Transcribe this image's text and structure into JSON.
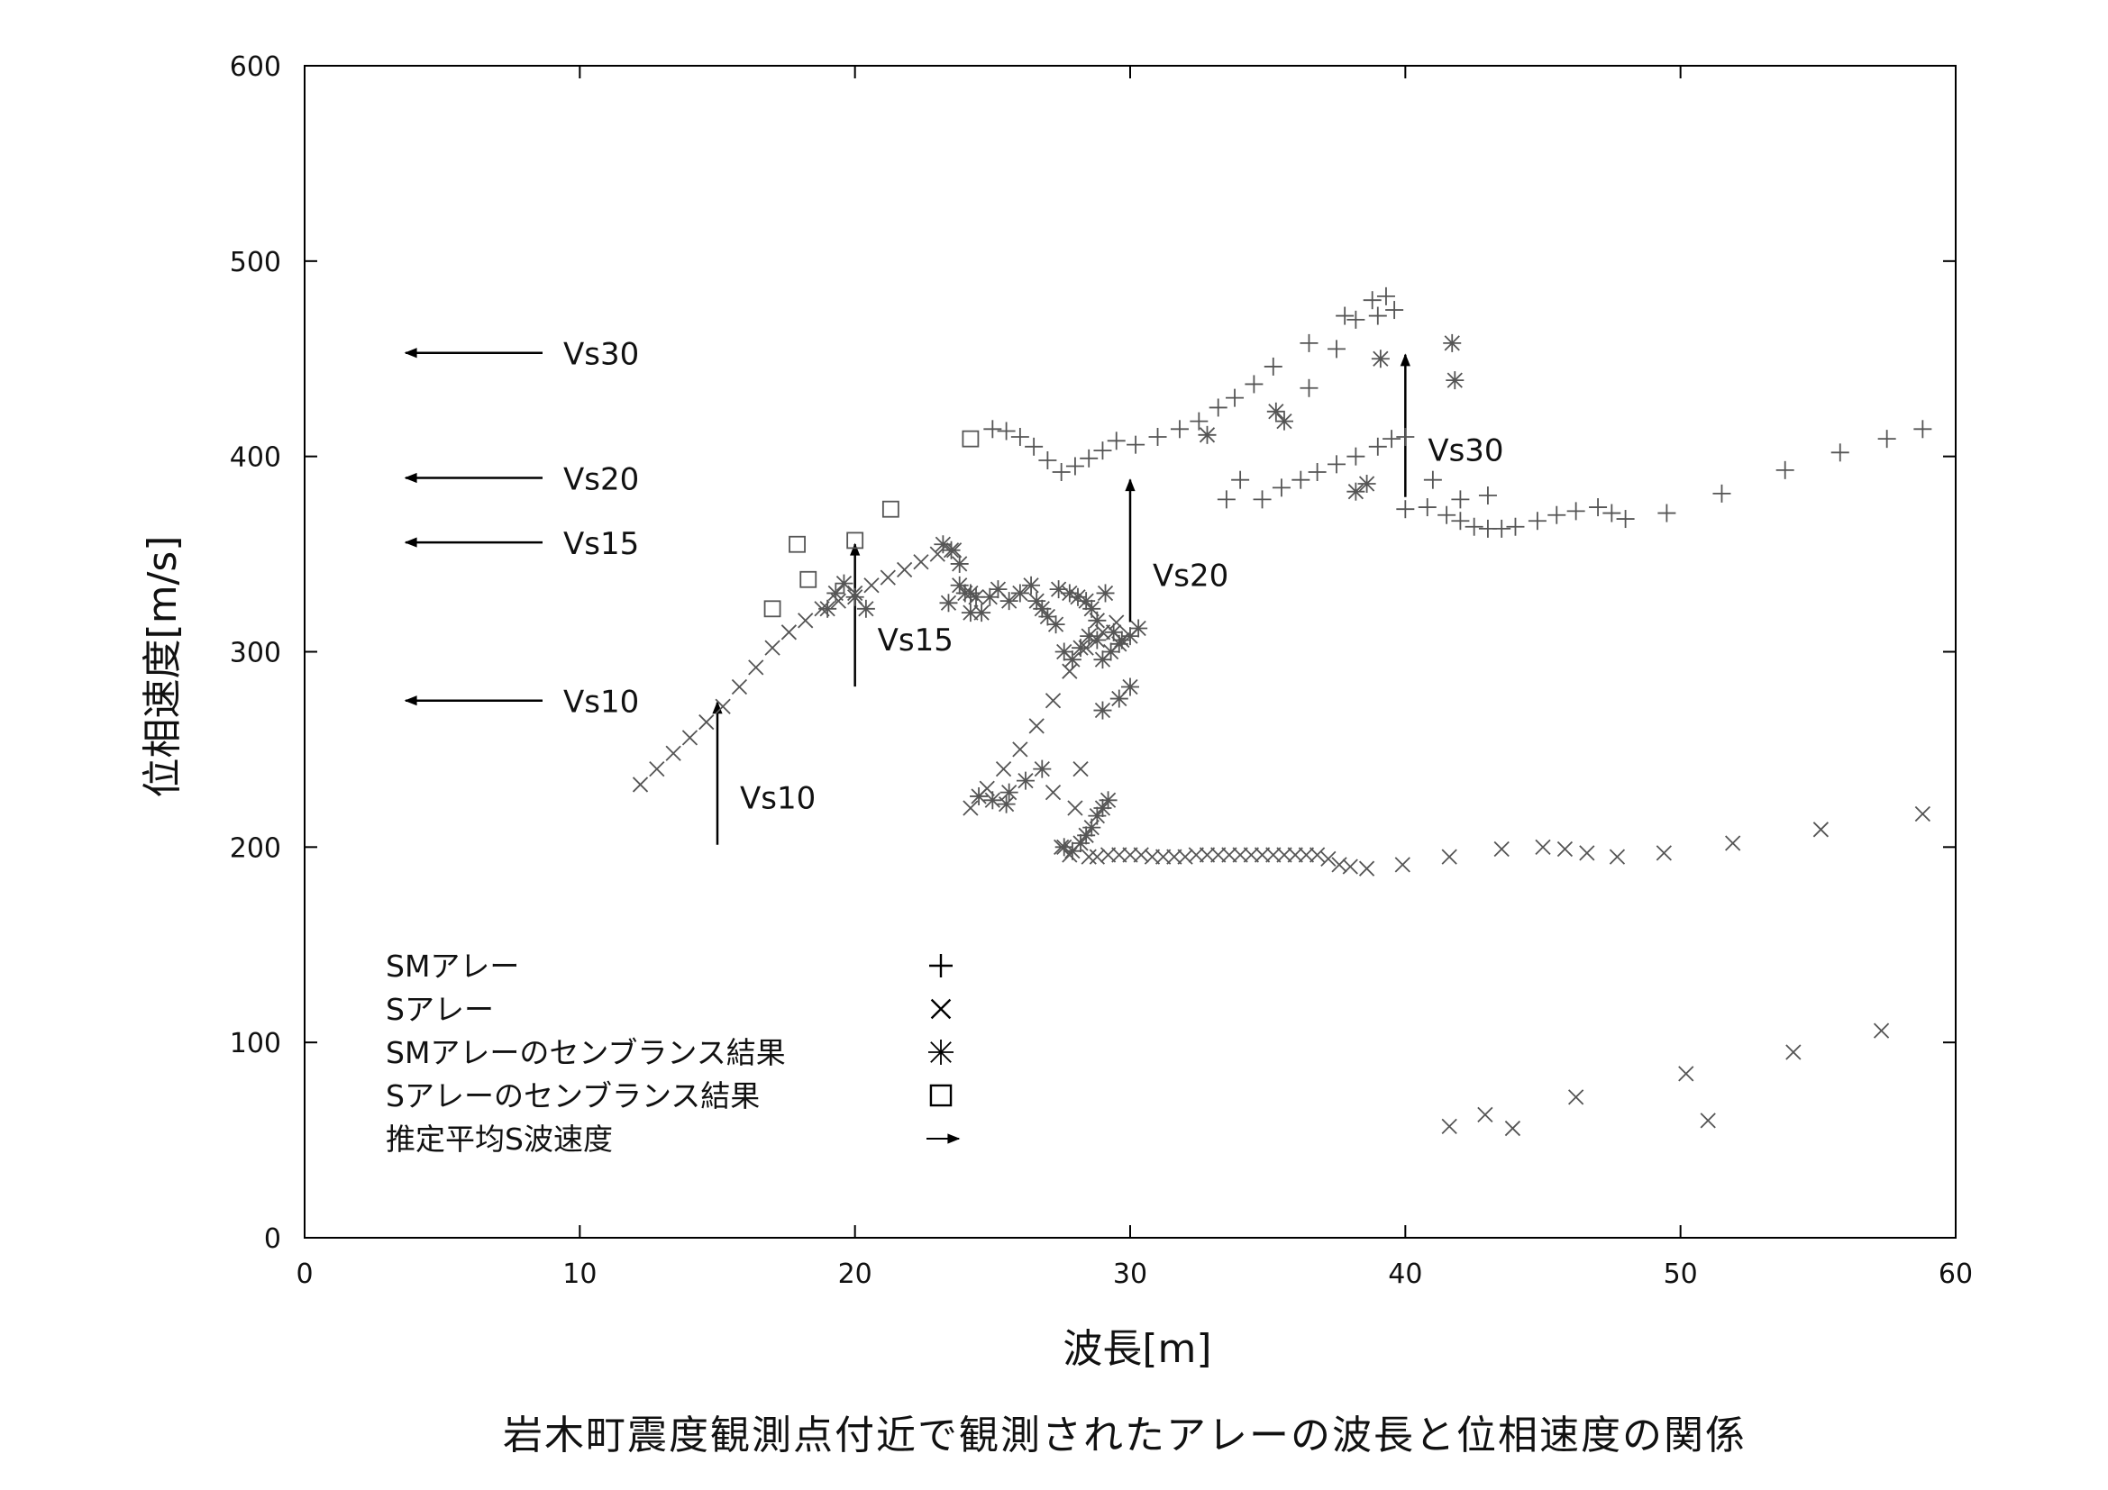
{
  "chart_data": {
    "type": "scatter",
    "caption": "岩木町震度観測点付近で観測されたアレーの波長と位相速度の関係",
    "xlabel": "波長[m]",
    "ylabel": "位相速度[m/s]",
    "xlim": [
      0,
      60
    ],
    "ylim": [
      0,
      600
    ],
    "xticks": [
      "0",
      "10",
      "20",
      "30",
      "40",
      "50",
      "60"
    ],
    "yticks": [
      "0",
      "100",
      "200",
      "300",
      "400",
      "500",
      "600"
    ],
    "grid": false,
    "legend_position": "bottom-left",
    "colors": {
      "points": "#555555",
      "arrows": "#000000"
    },
    "legend": [
      {
        "label": "SMアレー",
        "symbol": "+"
      },
      {
        "label": "Sアレー",
        "symbol": "×"
      },
      {
        "label": "SMアレーのセンブランス結果",
        "symbol": "※"
      },
      {
        "label": "Sアレーのセンブランス結果",
        "symbol": "□"
      },
      {
        "label": "推定平均S波速度",
        "symbol": "→"
      }
    ],
    "reference_lines": [
      {
        "label": "Vs30",
        "velocity": 453
      },
      {
        "label": "Vs20",
        "velocity": 389
      },
      {
        "label": "Vs15",
        "velocity": 356
      },
      {
        "label": "Vs10",
        "velocity": 275
      }
    ],
    "wavelength_markers": [
      {
        "label": "Vs10",
        "wavelength": 15,
        "velocity": 275
      },
      {
        "label": "Vs15",
        "wavelength": 20,
        "velocity": 356
      },
      {
        "label": "Vs20",
        "wavelength": 30,
        "velocity": 389
      },
      {
        "label": "Vs30",
        "wavelength": 40,
        "velocity": 453
      }
    ],
    "series": [
      {
        "name": "SMアレー",
        "marker": "plus",
        "x": [
          25.0,
          25.5,
          26.0,
          26.5,
          27.0,
          27.5,
          28.0,
          28.5,
          29.0,
          29.5,
          30.2,
          31.0,
          31.8,
          32.5,
          33.2,
          33.8,
          34.5,
          35.2,
          36.5,
          37.8,
          38.8,
          39.3,
          39.6,
          36.5,
          37.5,
          38.2,
          39.0,
          40.0,
          41.0,
          42.0,
          43.0,
          33.5,
          34.0,
          34.8,
          35.5,
          36.2,
          36.8,
          37.5,
          38.2,
          39.0,
          39.5,
          40.0,
          40.8,
          41.5,
          42.0,
          42.5,
          43.0,
          43.5,
          44.0,
          44.8,
          45.5,
          46.2,
          47.0,
          47.5,
          48.0,
          49.5,
          51.5,
          53.8,
          55.8,
          57.5,
          58.8
        ],
        "y": [
          414,
          413,
          410,
          405,
          398,
          392,
          395,
          399,
          403,
          408,
          406,
          410,
          414,
          418,
          425,
          430,
          437,
          446,
          458,
          472,
          480,
          482,
          475,
          435,
          455,
          470,
          472,
          410,
          388,
          378,
          380,
          378,
          388,
          378,
          384,
          388,
          392,
          396,
          400,
          405,
          409,
          373,
          374,
          370,
          367,
          364,
          363,
          363,
          364,
          367,
          370,
          372,
          374,
          371,
          368,
          371,
          381,
          393,
          402,
          409,
          414
        ]
      },
      {
        "name": "Sアレー",
        "marker": "cross",
        "x": [
          12.2,
          12.8,
          13.4,
          14.0,
          14.6,
          15.2,
          15.8,
          16.4,
          17.0,
          17.6,
          18.2,
          18.8,
          19.4,
          20.0,
          20.6,
          21.2,
          21.8,
          22.4,
          23.0,
          23.6,
          24.2,
          24.8,
          25.4,
          26.0,
          26.6,
          27.2,
          27.8,
          28.4,
          29.0,
          29.5,
          27.2,
          27.5,
          27.8,
          28.0,
          28.2,
          28.5,
          28.8,
          29.2,
          29.6,
          30.0,
          30.4,
          30.8,
          31.2,
          31.6,
          32.0,
          32.4,
          32.8,
          33.2,
          33.6,
          34.0,
          34.4,
          34.8,
          35.2,
          35.6,
          36.0,
          36.4,
          36.8,
          37.2,
          37.6,
          38.0,
          38.6,
          39.9,
          41.6,
          43.5,
          45.0,
          45.8,
          46.6,
          47.7,
          49.4,
          51.9,
          55.1,
          58.8,
          41.6,
          42.9,
          43.9,
          46.2,
          50.2,
          51.0,
          54.1,
          57.3
        ],
        "y": [
          232,
          240,
          248,
          256,
          264,
          272,
          282,
          292,
          302,
          310,
          316,
          322,
          326,
          330,
          334,
          338,
          342,
          346,
          350,
          352,
          220,
          230,
          240,
          250,
          262,
          275,
          290,
          302,
          310,
          315,
          228,
          200,
          196,
          220,
          240,
          195,
          195,
          196,
          196,
          196,
          196,
          195,
          195,
          195,
          195,
          196,
          196,
          196,
          196,
          196,
          196,
          196,
          196,
          196,
          196,
          196,
          196,
          194,
          191,
          190,
          189,
          191,
          195,
          199,
          200,
          199,
          197,
          195,
          197,
          202,
          209,
          217,
          57,
          63,
          56,
          72,
          84,
          60,
          95,
          106
        ]
      },
      {
        "name": "SMアレーのセンブランス結果",
        "marker": "asterisk",
        "x": [
          19.0,
          19.3,
          19.6,
          20.0,
          20.4,
          23.2,
          23.5,
          23.8,
          24.0,
          24.2,
          23.4,
          23.8,
          24.2,
          24.4,
          24.6,
          24.9,
          25.2,
          25.6,
          26.0,
          26.4,
          26.6,
          26.8,
          27.0,
          27.3,
          27.6,
          27.9,
          28.2,
          28.5,
          28.8,
          29.1,
          29.4,
          29.7,
          30.0,
          30.3,
          27.4,
          27.8,
          28.1,
          28.4,
          28.6,
          28.8,
          29.0,
          29.3,
          29.6,
          27.6,
          27.9,
          28.2,
          28.4,
          28.6,
          28.8,
          29.0,
          29.2,
          25.6,
          26.2,
          26.8,
          29.0,
          29.6,
          30.0,
          32.8,
          35.3,
          35.6,
          38.2,
          38.6,
          39.1,
          41.7,
          41.8,
          24.5,
          25.0,
          25.5
        ],
        "y": [
          322,
          330,
          335,
          328,
          322,
          355,
          352,
          345,
          330,
          320,
          325,
          334,
          330,
          328,
          320,
          328,
          332,
          326,
          330,
          334,
          326,
          322,
          318,
          314,
          300,
          296,
          302,
          308,
          316,
          330,
          310,
          306,
          308,
          312,
          332,
          330,
          328,
          326,
          322,
          306,
          296,
          300,
          304,
          200,
          198,
          202,
          206,
          210,
          216,
          220,
          224,
          228,
          234,
          240,
          270,
          276,
          282,
          411,
          423,
          418,
          382,
          386,
          450,
          458,
          439,
          226,
          224,
          222
        ]
      },
      {
        "name": "Sアレーのセンブランス結果",
        "marker": "square",
        "x": [
          17.0,
          17.9,
          18.3,
          20.0,
          21.3,
          24.2
        ],
        "y": [
          322,
          355,
          337,
          357,
          373,
          409
        ]
      }
    ]
  }
}
